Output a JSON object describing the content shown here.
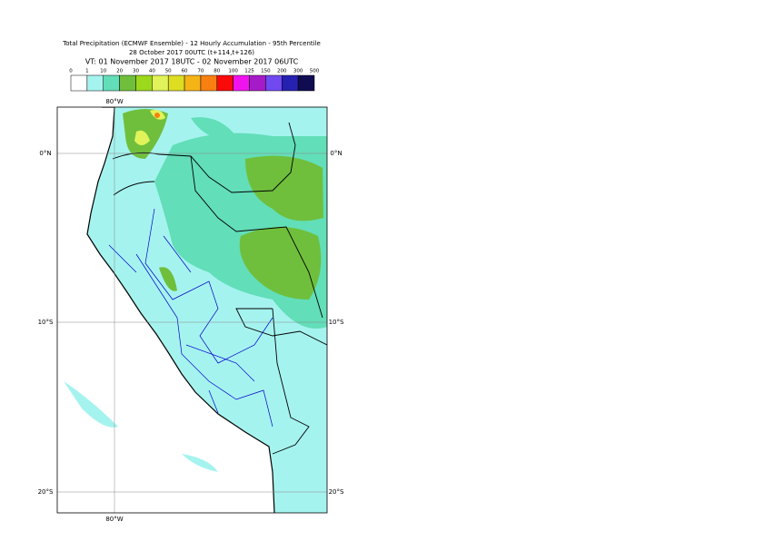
{
  "header": {
    "title": "Total Precipitation (ECMWF Ensemble) - 12 Hourly Accumulation - 95th Percentile",
    "base_time": "28 October 2017 00UTC (t+114,t+126)",
    "valid_time": "VT: 01 November 2017 18UTC - 02 November 2017 06UTC"
  },
  "legend": {
    "labels": [
      "0",
      "1",
      "10",
      "20",
      "30",
      "40",
      "50",
      "60",
      "70",
      "80",
      "100",
      "125",
      "150",
      "200",
      "300",
      "500"
    ],
    "colors": [
      "#ffffff",
      "#a5f3ef",
      "#62deb8",
      "#6fbf3c",
      "#9cd81c",
      "#e0f35a",
      "#dddd22",
      "#f5b416",
      "#f88010",
      "#fb0a0a",
      "#ef14ee",
      "#a61bc8",
      "#7049f0",
      "#2621b0",
      "#100c50"
    ]
  },
  "map": {
    "lat_labels": [
      "0°N",
      "10°S",
      "20°S"
    ],
    "lon_labels": [
      "80°W"
    ]
  }
}
